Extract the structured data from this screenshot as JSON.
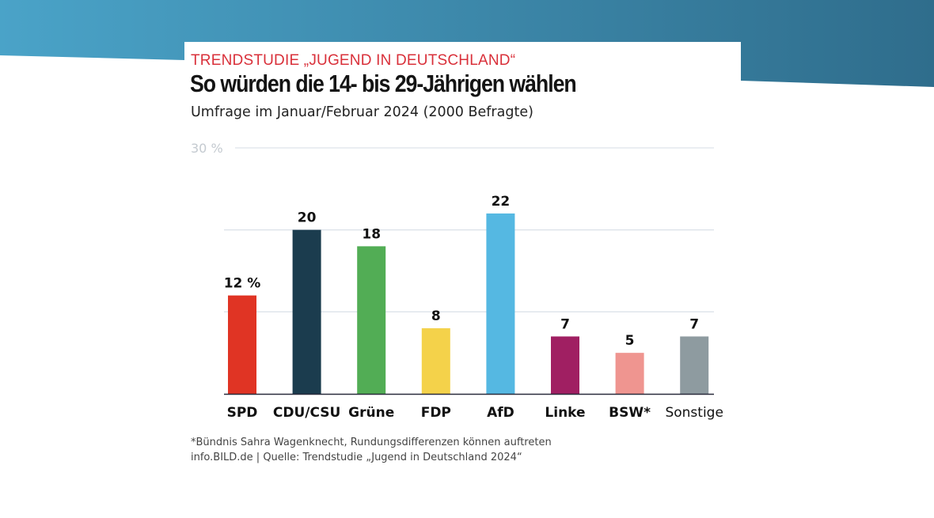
{
  "header": {
    "kicker": "TRENDSTUDIE „JUGEND IN DEUTSCHLAND“",
    "title": "So würden die 14- bis 29-Jährigen wählen",
    "subtitle": "Umfrage im Januar/Februar 2024 (2000 Befragte)"
  },
  "footer": {
    "note": "*Bündnis Sahra Wagenknecht, Rundungsdifferenzen können auftreten",
    "source": "info.BILD.de | Quelle: Trendstudie „Jugend in Deutschland 2024“"
  },
  "theme": {
    "band_color_left": "#4aa3c8",
    "band_color_right": "#2f6d8c",
    "kicker_color": "#d9303a"
  },
  "chart_data": {
    "type": "bar",
    "title": "So würden die 14- bis 29-Jährigen wählen",
    "subtitle": "Umfrage im Januar/Februar 2024 (2000 Befragte)",
    "xlabel": "",
    "ylabel": "",
    "ylim": [
      0,
      30
    ],
    "gridlines": [
      10,
      20,
      30
    ],
    "ytick_labels": [
      {
        "value": 30,
        "label": "30 %"
      }
    ],
    "grid": true,
    "legend": "none",
    "categories": [
      "SPD",
      "CDU/CSU",
      "Grüne",
      "FDP",
      "AfD",
      "Linke",
      "BSW*",
      "Sonstige"
    ],
    "values": [
      12,
      20,
      18,
      8,
      22,
      7,
      5,
      7
    ],
    "value_labels": [
      "12 %",
      "20",
      "18",
      "8",
      "22",
      "7",
      "5",
      "7"
    ],
    "colors": [
      "#e03424",
      "#1b3c4e",
      "#52ad55",
      "#f4d24a",
      "#55b8e2",
      "#a01f62",
      "#ef9590",
      "#8e9ba0"
    ],
    "category_label_weight": [
      "bold",
      "bold",
      "bold",
      "bold",
      "bold",
      "bold",
      "bold",
      "normal"
    ],
    "unit": "%"
  }
}
